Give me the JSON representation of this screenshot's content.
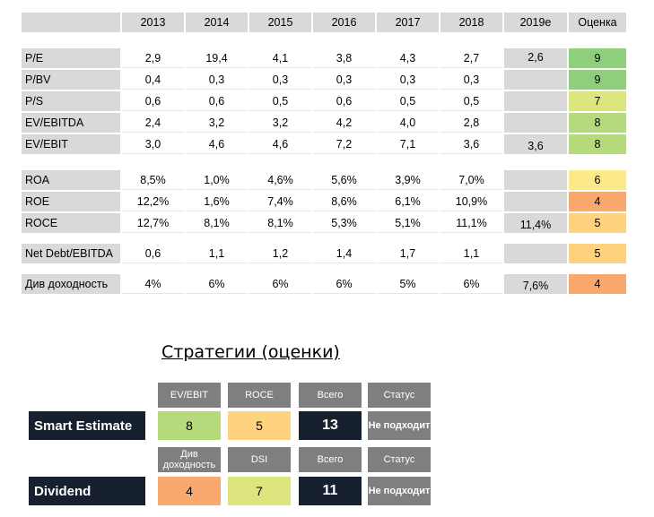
{
  "colors": {
    "s9": "#8fce7a",
    "s8": "#b4da7c",
    "s7": "#dde57f",
    "s6": "#fbe98a",
    "s5": "#fed27f",
    "s4": "#f9a86e",
    "gray": "#d9d9d9"
  },
  "header": {
    "years": [
      "2013",
      "2014",
      "2015",
      "2016",
      "2017",
      "2018"
    ],
    "est": "2019e",
    "score": "Оценка"
  },
  "groups": [
    {
      "rows": [
        {
          "label": "P/E",
          "vals": [
            "2,9",
            "19,4",
            "4,1",
            "3,8",
            "4,3",
            "2,7"
          ],
          "est": "2,6",
          "score": "9",
          "color": "#8fce7a"
        },
        {
          "label": "P/BV",
          "vals": [
            "0,4",
            "0,3",
            "0,3",
            "0,3",
            "0,3",
            "0,3"
          ],
          "est": "",
          "score": "9",
          "color": "#8fce7a"
        },
        {
          "label": "P/S",
          "vals": [
            "0,6",
            "0,6",
            "0,5",
            "0,6",
            "0,5",
            "0,5"
          ],
          "est": "",
          "score": "7",
          "color": "#dde57f"
        },
        {
          "label": "EV/EBITDA",
          "vals": [
            "2,4",
            "3,2",
            "3,2",
            "4,2",
            "4,0",
            "2,8"
          ],
          "est": "",
          "score": "8",
          "color": "#b4da7c"
        },
        {
          "label": "EV/EBIT",
          "vals": [
            "3,0",
            "4,6",
            "4,6",
            "7,2",
            "7,1",
            "3,6"
          ],
          "est": "3,6",
          "score": "8",
          "color": "#b4da7c"
        }
      ]
    },
    {
      "rows": [
        {
          "label": "ROA",
          "vals": [
            "8,5%",
            "1,0%",
            "4,6%",
            "5,6%",
            "3,9%",
            "7,0%"
          ],
          "est": "",
          "score": "6",
          "color": "#fbe98a"
        },
        {
          "label": "ROE",
          "vals": [
            "12,2%",
            "1,6%",
            "7,4%",
            "8,6%",
            "6,1%",
            "10,9%"
          ],
          "est": "",
          "score": "4",
          "color": "#f9a86e"
        },
        {
          "label": "ROCE",
          "vals": [
            "12,7%",
            "8,1%",
            "8,1%",
            "5,3%",
            "5,1%",
            "11,1%"
          ],
          "est": "11,4%",
          "score": "5",
          "color": "#fed27f"
        }
      ]
    },
    {
      "rows": [
        {
          "label": "Net Debt/EBITDA",
          "vals": [
            "0,6",
            "1,1",
            "1,2",
            "1,4",
            "1,7",
            "1,1"
          ],
          "est": "",
          "score": "5",
          "color": "#fed27f"
        }
      ]
    },
    {
      "rows": [
        {
          "label": "Див доходность",
          "vals": [
            "4%",
            "6%",
            "6%",
            "6%",
            "5%",
            "6%"
          ],
          "est": "7,6%",
          "score": "4",
          "color": "#f9a86e"
        }
      ]
    }
  ],
  "strategies_title": "Стратегии (оценки)",
  "strategies": [
    {
      "name": "Smart Estimate",
      "cols": [
        {
          "head": "EV/EBIT",
          "val": "8",
          "color": "#b4da7c"
        },
        {
          "head": "ROCE",
          "val": "5",
          "color": "#fed27f"
        },
        {
          "head": "Всего",
          "val": "13",
          "color": "total"
        },
        {
          "head": "Статус",
          "val": "Не подходит",
          "color": "status"
        }
      ]
    },
    {
      "name": "Dividend",
      "cols": [
        {
          "head": "Див доходность",
          "val": "4",
          "color": "#f9a86e"
        },
        {
          "head": "DSI",
          "val": "7",
          "color": "#dde57f"
        },
        {
          "head": "Всего",
          "val": "11",
          "color": "total"
        },
        {
          "head": "Статус",
          "val": "Не подходит",
          "color": "status"
        }
      ]
    }
  ]
}
